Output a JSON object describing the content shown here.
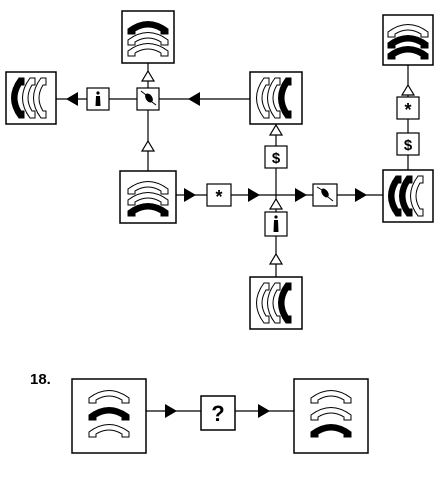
{
  "question": {
    "number": "18.",
    "unknown_symbol": "?"
  },
  "operators": {
    "star": "*",
    "dollar": "$",
    "info": "i"
  },
  "colors": {
    "line": "#000000",
    "filled": "#000000",
    "hollow": "#ffffff",
    "background": "#ffffff"
  }
}
